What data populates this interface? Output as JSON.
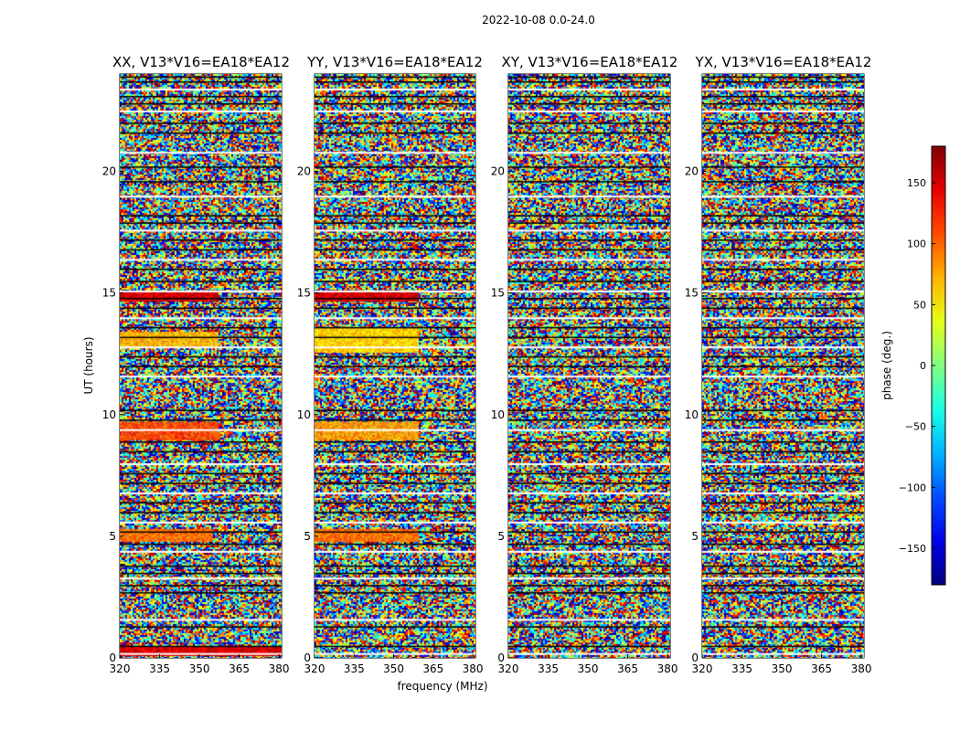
{
  "figure": {
    "suptitle": "2022-10-08 0.0-24.0"
  },
  "chart_data": {
    "type": "heatmap",
    "title": "2022-10-08 0.0-24.0",
    "xlabel": "frequency (MHz)",
    "ylabel": "UT (hours)",
    "xlim": [
      320,
      381
    ],
    "ylim": [
      0,
      24
    ],
    "xticks": [
      320,
      335,
      350,
      365,
      380
    ],
    "yticks": [
      0,
      5,
      10,
      15,
      20
    ],
    "colorbar": {
      "label": "phase (deg.)",
      "range": [
        -180,
        180
      ],
      "ticks": [
        150,
        100,
        50,
        0,
        -50,
        -100,
        -150
      ],
      "tick_labels": [
        "150",
        "100",
        "50",
        "0",
        "−50",
        "−100",
        "−150"
      ],
      "colormap": [
        "#00007f",
        "#0000ff",
        "#007fff",
        "#00ffff",
        "#7fff7f",
        "#ffff00",
        "#ff7f00",
        "#ff0000",
        "#7f0000"
      ]
    },
    "panels": [
      {
        "title": "XX, V13*V16=EA18*EA12",
        "bright_bands": [
          {
            "t0": 0.1,
            "t1": 0.45,
            "f_end": 381,
            "phase": 150
          },
          {
            "t0": 4.8,
            "t1": 5.3,
            "f_end": 355,
            "phase": 95
          },
          {
            "t0": 9.0,
            "t1": 9.7,
            "f_end": 357,
            "phase": 110
          },
          {
            "t0": 12.8,
            "t1": 13.4,
            "f_end": 357,
            "phase": 70
          },
          {
            "t0": 14.7,
            "t1": 15.1,
            "f_end": 357,
            "phase": 150
          }
        ]
      },
      {
        "title": "YY, V13*V16=EA18*EA12",
        "bright_bands": [
          {
            "t0": 4.8,
            "t1": 5.3,
            "f_end": 359,
            "phase": 95
          },
          {
            "t0": 9.0,
            "t1": 9.7,
            "f_end": 359,
            "phase": 80
          },
          {
            "t0": 12.6,
            "t1": 13.6,
            "f_end": 359,
            "phase": 60
          },
          {
            "t0": 14.7,
            "t1": 15.1,
            "f_end": 359,
            "phase": 150
          }
        ]
      },
      {
        "title": "XY, V13*V16=EA18*EA12",
        "bright_bands": []
      },
      {
        "title": "YX, V13*V16=EA18*EA12",
        "bright_bands": []
      }
    ],
    "flagged_rows_hours": [
      0.2,
      0.5,
      1.3,
      1.6,
      2.7,
      3.0,
      3.3,
      3.5,
      3.8,
      4.4,
      4.7,
      5.2,
      5.6,
      6.0,
      6.4,
      6.8,
      7.2,
      7.6,
      8.0,
      8.5,
      8.9,
      9.4,
      9.8,
      10.2,
      11.6,
      12.0,
      12.4,
      12.8,
      13.2,
      13.6,
      14.0,
      14.4,
      14.8,
      15.1,
      15.5,
      16.0,
      16.4,
      16.8,
      17.2,
      17.6,
      17.9,
      18.2,
      19.0,
      19.6,
      20.2,
      20.8,
      21.6,
      22.0,
      22.5,
      22.8,
      23.1,
      23.4,
      23.7,
      23.9
    ]
  }
}
